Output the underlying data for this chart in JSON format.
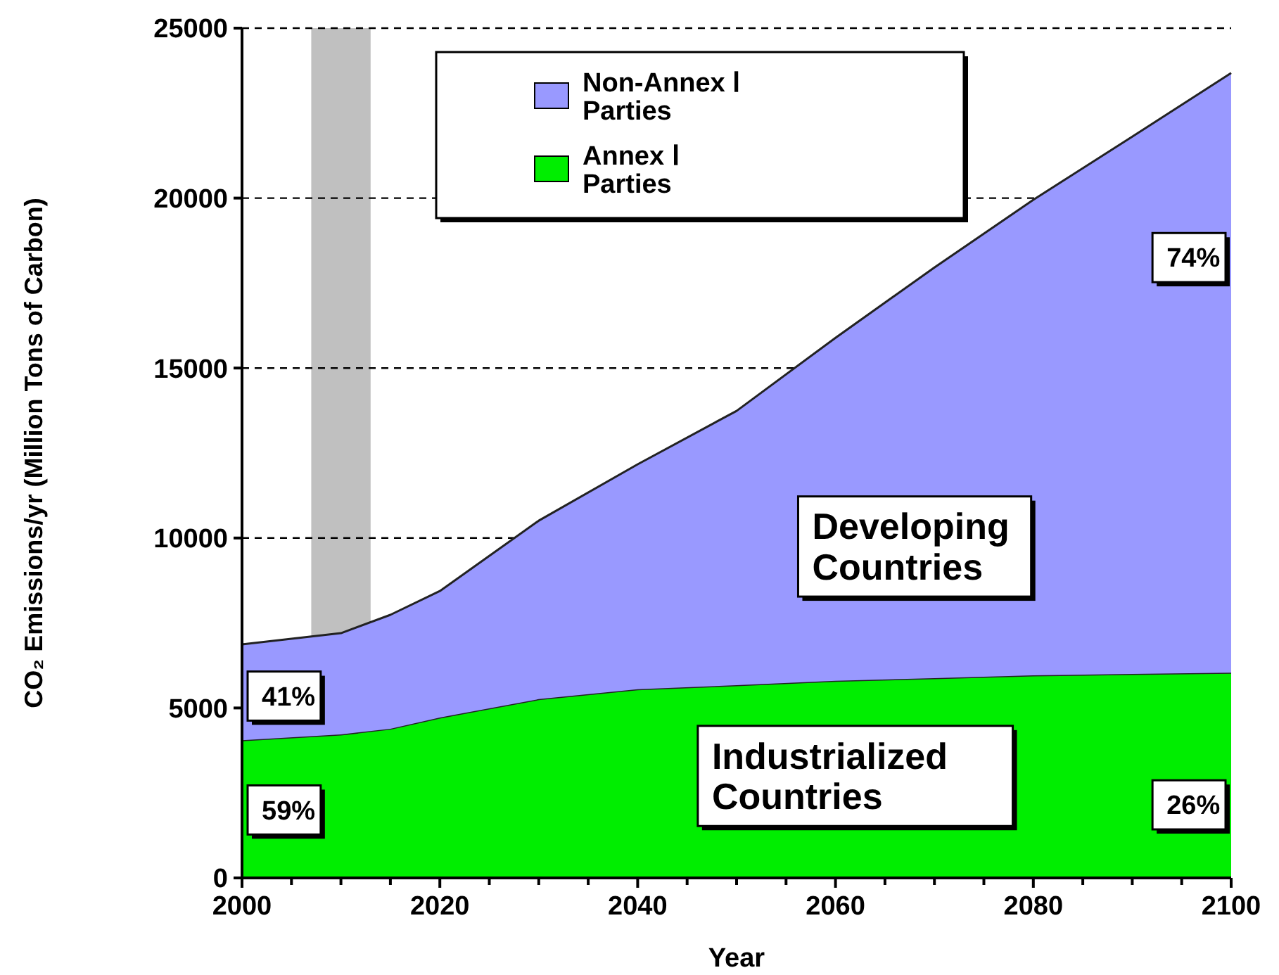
{
  "chart_data": {
    "type": "area",
    "stacked": true,
    "xlabel": "Year",
    "ylabel": "CO₂ Emissions/yr (Million Tons of Carbon)",
    "x": [
      2000,
      2010,
      2015,
      2020,
      2030,
      2040,
      2050,
      2060,
      2070,
      2080,
      2090,
      2100
    ],
    "series": [
      {
        "name": "Annex Ⅰ Parties",
        "color": "#00ee00",
        "values": [
          4050,
          4220,
          4390,
          4720,
          5260,
          5550,
          5670,
          5800,
          5880,
          5960,
          6000,
          6040
        ]
      },
      {
        "name": "Non-Annex Ⅰ Parties",
        "color": "#9999ff",
        "values": [
          2820,
          2980,
          3350,
          3720,
          5250,
          6620,
          8070,
          10090,
          12080,
          13990,
          15810,
          17640
        ]
      }
    ],
    "xlim": [
      2000,
      2100
    ],
    "xticks": [
      2000,
      {
        "value": 2005,
        "label": null
      },
      {
        "value": 2010,
        "label": null
      },
      {
        "value": 2015,
        "label": null
      },
      2020,
      {
        "value": 2025,
        "label": null
      },
      {
        "value": 2030,
        "label": null
      },
      {
        "value": 2035,
        "label": null
      },
      2040,
      {
        "value": 2045,
        "label": null
      },
      {
        "value": 2050,
        "label": null
      },
      {
        "value": 2055,
        "label": null
      },
      2060,
      {
        "value": 2065,
        "label": null
      },
      {
        "value": 2070,
        "label": null
      },
      {
        "value": 2075,
        "label": null
      },
      2080,
      {
        "value": 2085,
        "label": null
      },
      {
        "value": 2090,
        "label": null
      },
      {
        "value": 2095,
        "label": null
      },
      2100
    ],
    "ylim": [
      0,
      25000
    ],
    "yticks": [
      0,
      5000,
      10000,
      15000,
      20000,
      25000
    ],
    "grid": "y",
    "legend": "top",
    "bands": [
      {
        "axis": "x",
        "from": 2007,
        "to": 2013,
        "color": "#c0c0c0"
      }
    ],
    "annotations": [
      "41%",
      "59%",
      "74%",
      "26%",
      "Developing Countries",
      "Industrialized Countries"
    ]
  }
}
